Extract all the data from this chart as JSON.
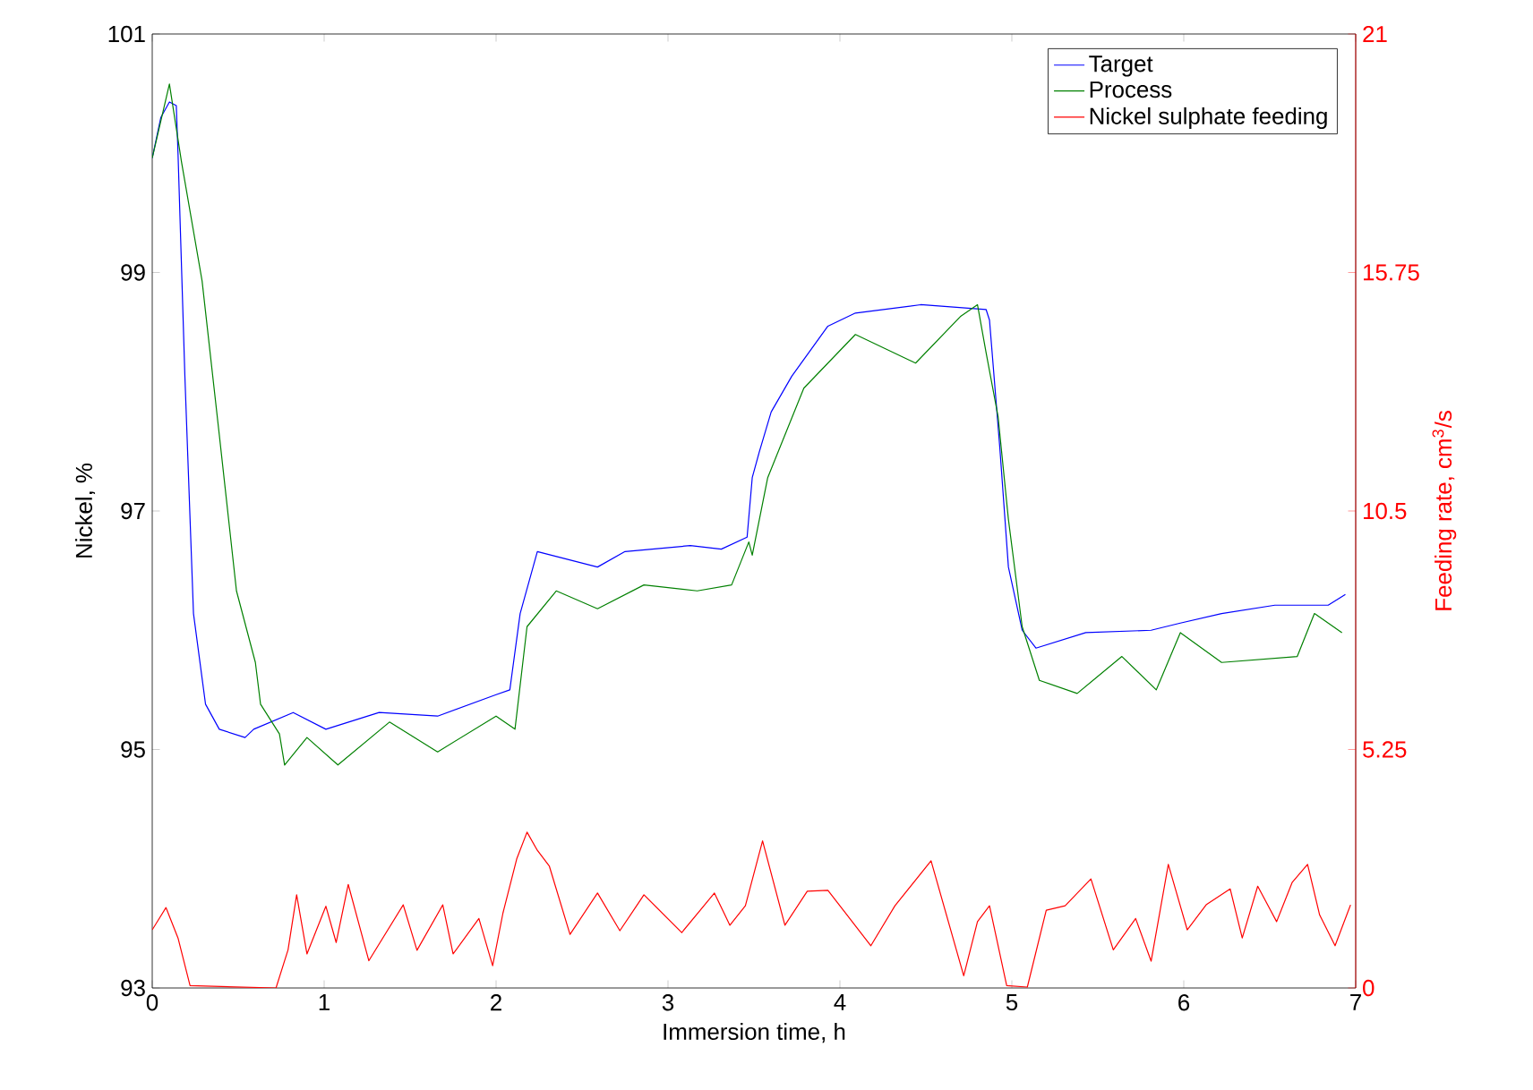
{
  "chart_data": {
    "type": "line",
    "xlabel": "Immersion time, h",
    "ylabel": "Nickel, %",
    "y2label": "Feeding rate, cm$^{3}$/s",
    "xlim": [
      0,
      7
    ],
    "xticks": [
      0,
      1,
      2,
      3,
      4,
      5,
      6,
      7
    ],
    "ylim": [
      93,
      101
    ],
    "yticks": [
      93,
      95,
      97,
      99,
      101
    ],
    "y2lim": [
      0,
      21
    ],
    "y2ticks": [
      0,
      5.25,
      10.5,
      15.75,
      21
    ],
    "legend": "top right",
    "grid": false,
    "marker": "none",
    "line_style": "solid",
    "series": [
      {
        "name": "Target",
        "color": "#0000ff",
        "x": [
          0,
          0.05,
          0.1,
          0.14,
          0.15,
          0.19,
          0.24,
          0.31,
          0.39,
          0.54,
          0.59,
          0.82,
          1.01,
          1.32,
          1.66,
          2.0,
          2.08,
          2.14,
          2.24,
          2.59,
          2.75,
          3.13,
          3.31,
          3.46,
          3.49,
          3.53,
          3.6,
          3.72,
          3.93,
          4.09,
          4.47,
          4.85,
          4.87,
          4.93,
          4.98,
          5.06,
          5.14,
          5.43,
          5.81,
          5.98,
          6.22,
          6.53,
          6.84,
          6.94
        ],
        "values": [
          99.96,
          100.3,
          100.43,
          100.4,
          100.0,
          98.13,
          96.14,
          95.38,
          95.17,
          95.1,
          95.17,
          95.31,
          95.17,
          95.31,
          95.28,
          95.46,
          95.5,
          96.14,
          96.66,
          96.53,
          96.66,
          96.71,
          96.68,
          96.78,
          97.28,
          97.49,
          97.83,
          98.13,
          98.55,
          98.66,
          98.73,
          98.69,
          98.6,
          97.53,
          96.53,
          96.0,
          95.85,
          95.98,
          96.0,
          96.06,
          96.14,
          96.21,
          96.21,
          96.3
        ]
      },
      {
        "name": "Process",
        "color": "#008000",
        "x": [
          0,
          0.1,
          0.17,
          0.29,
          0.39,
          0.49,
          0.6,
          0.63,
          0.74,
          0.77,
          0.9,
          1.08,
          1.38,
          1.66,
          2.0,
          2.11,
          2.18,
          2.35,
          2.59,
          2.86,
          3.17,
          3.37,
          3.47,
          3.49,
          3.58,
          3.79,
          4.09,
          4.44,
          4.7,
          4.8,
          4.85,
          4.92,
          4.98,
          5.06,
          5.16,
          5.38,
          5.64,
          5.84,
          5.98,
          6.22,
          6.66,
          6.76,
          6.92
        ],
        "values": [
          99.96,
          100.58,
          99.93,
          98.93,
          97.64,
          96.33,
          95.73,
          95.38,
          95.13,
          94.87,
          95.1,
          94.87,
          95.23,
          94.98,
          95.28,
          95.17,
          96.03,
          96.33,
          96.18,
          96.38,
          96.33,
          96.38,
          96.74,
          96.63,
          97.28,
          98.03,
          98.48,
          98.24,
          98.63,
          98.73,
          98.33,
          97.79,
          96.93,
          96.03,
          95.58,
          95.47,
          95.78,
          95.5,
          95.98,
          95.73,
          95.78,
          96.14,
          95.98
        ]
      },
      {
        "name": "Nickel sulphate feeding",
        "color": "#ff0000",
        "axis": "y2",
        "x": [
          0,
          0.08,
          0.15,
          0.22,
          0.72,
          0.79,
          0.84,
          0.9,
          1.01,
          1.07,
          1.14,
          1.26,
          1.46,
          1.54,
          1.69,
          1.75,
          1.9,
          1.98,
          2.04,
          2.12,
          2.18,
          2.24,
          2.31,
          2.43,
          2.59,
          2.72,
          2.86,
          3.08,
          3.27,
          3.36,
          3.45,
          3.55,
          3.68,
          3.81,
          3.93,
          4.18,
          4.32,
          4.53,
          4.72,
          4.8,
          4.87,
          4.97,
          5.09,
          5.2,
          5.31,
          5.46,
          5.59,
          5.72,
          5.81,
          5.91,
          6.02,
          6.13,
          6.27,
          6.34,
          6.43,
          6.54,
          6.63,
          6.72,
          6.79,
          6.88,
          6.97
        ],
        "values": [
          1.28,
          1.77,
          1.1,
          0.05,
          0,
          0.84,
          2.05,
          0.75,
          1.8,
          1.0,
          2.28,
          0.6,
          1.83,
          0.83,
          1.83,
          0.75,
          1.53,
          0.49,
          1.65,
          2.84,
          3.43,
          3.03,
          2.68,
          1.18,
          2.09,
          1.26,
          2.05,
          1.22,
          2.09,
          1.38,
          1.81,
          3.24,
          1.38,
          2.13,
          2.15,
          0.93,
          1.81,
          2.8,
          0.27,
          1.46,
          1.81,
          0.05,
          0.02,
          1.71,
          1.81,
          2.4,
          0.84,
          1.53,
          0.59,
          2.72,
          1.28,
          1.83,
          2.18,
          1.1,
          2.24,
          1.46,
          2.32,
          2.72,
          1.61,
          0.93,
          1.83
        ]
      }
    ]
  }
}
